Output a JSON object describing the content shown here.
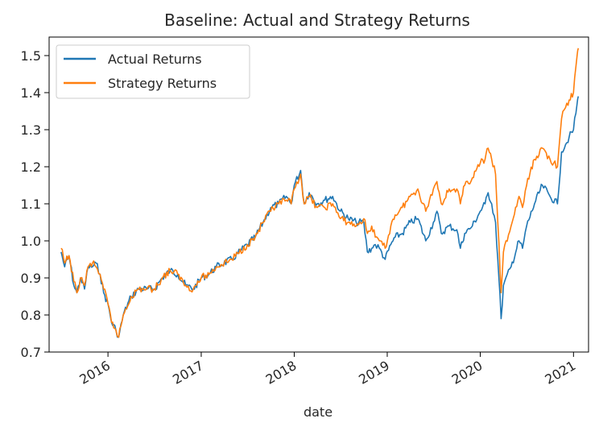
{
  "chart_data": {
    "type": "line",
    "title": "Baseline: Actual and Strategy Returns",
    "xlabel": "date",
    "ylabel": "",
    "xlim": [
      "2015-05-15",
      "2021-03-01"
    ],
    "ylim": [
      0.7,
      1.55
    ],
    "x_ticks": [
      "2016",
      "2017",
      "2018",
      "2019",
      "2020",
      "2021"
    ],
    "y_ticks": [
      "0.7",
      "0.8",
      "0.9",
      "1.0",
      "1.1",
      "1.2",
      "1.3",
      "1.4",
      "1.5"
    ],
    "grid": false,
    "legend_position": "top-left",
    "series": [
      {
        "name": "Actual Returns",
        "color": "#1f77b4",
        "points": [
          [
            "2015-07-01",
            0.97
          ],
          [
            "2015-07-15",
            0.93
          ],
          [
            "2015-08-01",
            0.96
          ],
          [
            "2015-08-20",
            0.88
          ],
          [
            "2015-09-01",
            0.86
          ],
          [
            "2015-09-15",
            0.9
          ],
          [
            "2015-10-01",
            0.87
          ],
          [
            "2015-10-15",
            0.93
          ],
          [
            "2015-11-01",
            0.93
          ],
          [
            "2015-11-15",
            0.94
          ],
          [
            "2015-12-01",
            0.91
          ],
          [
            "2015-12-15",
            0.86
          ],
          [
            "2016-01-01",
            0.83
          ],
          [
            "2016-01-15",
            0.78
          ],
          [
            "2016-02-01",
            0.76
          ],
          [
            "2016-02-12",
            0.74
          ],
          [
            "2016-03-01",
            0.8
          ],
          [
            "2016-04-01",
            0.85
          ],
          [
            "2016-05-01",
            0.87
          ],
          [
            "2016-06-01",
            0.87
          ],
          [
            "2016-07-01",
            0.87
          ],
          [
            "2016-08-01",
            0.9
          ],
          [
            "2016-09-01",
            0.92
          ],
          [
            "2016-10-01",
            0.91
          ],
          [
            "2016-11-01",
            0.88
          ],
          [
            "2016-12-01",
            0.87
          ],
          [
            "2017-01-01",
            0.9
          ],
          [
            "2017-02-01",
            0.91
          ],
          [
            "2017-03-01",
            0.93
          ],
          [
            "2017-05-01",
            0.95
          ],
          [
            "2017-07-01",
            0.99
          ],
          [
            "2017-08-01",
            1.01
          ],
          [
            "2017-09-01",
            1.05
          ],
          [
            "2017-10-01",
            1.09
          ],
          [
            "2017-11-01",
            1.1
          ],
          [
            "2017-12-01",
            1.12
          ],
          [
            "2017-12-20",
            1.1
          ],
          [
            "2018-01-01",
            1.15
          ],
          [
            "2018-01-26",
            1.19
          ],
          [
            "2018-02-09",
            1.1
          ],
          [
            "2018-03-01",
            1.13
          ],
          [
            "2018-04-01",
            1.1
          ],
          [
            "2018-05-01",
            1.11
          ],
          [
            "2018-06-01",
            1.12
          ],
          [
            "2018-07-01",
            1.08
          ],
          [
            "2018-08-01",
            1.06
          ],
          [
            "2018-09-01",
            1.05
          ],
          [
            "2018-10-01",
            1.05
          ],
          [
            "2018-10-15",
            0.97
          ],
          [
            "2018-11-01",
            0.98
          ],
          [
            "2018-11-15",
            0.99
          ],
          [
            "2018-12-01",
            0.98
          ],
          [
            "2018-12-24",
            0.95
          ],
          [
            "2019-01-15",
            0.99
          ],
          [
            "2019-02-01",
            1.01
          ],
          [
            "2019-03-01",
            1.02
          ],
          [
            "2019-04-01",
            1.05
          ],
          [
            "2019-05-01",
            1.06
          ],
          [
            "2019-06-01",
            1.0
          ],
          [
            "2019-07-01",
            1.05
          ],
          [
            "2019-07-15",
            1.08
          ],
          [
            "2019-08-01",
            1.02
          ],
          [
            "2019-09-01",
            1.04
          ],
          [
            "2019-10-01",
            1.03
          ],
          [
            "2019-10-15",
            0.98
          ],
          [
            "2019-11-01",
            1.02
          ],
          [
            "2019-12-01",
            1.04
          ],
          [
            "2020-01-01",
            1.08
          ],
          [
            "2020-01-20",
            1.1
          ],
          [
            "2020-02-01",
            1.13
          ],
          [
            "2020-02-15",
            1.1
          ],
          [
            "2020-03-01",
            1.05
          ],
          [
            "2020-03-10",
            0.95
          ],
          [
            "2020-03-23",
            0.79
          ],
          [
            "2020-04-01",
            0.88
          ],
          [
            "2020-05-01",
            0.93
          ],
          [
            "2020-06-01",
            1.0
          ],
          [
            "2020-06-15",
            0.98
          ],
          [
            "2020-07-01",
            1.04
          ],
          [
            "2020-08-01",
            1.1
          ],
          [
            "2020-09-01",
            1.15
          ],
          [
            "2020-10-01",
            1.12
          ],
          [
            "2020-10-30",
            1.1
          ],
          [
            "2020-11-15",
            1.24
          ],
          [
            "2020-12-01",
            1.26
          ],
          [
            "2020-12-15",
            1.28
          ],
          [
            "2021-01-01",
            1.3
          ],
          [
            "2021-01-15",
            1.37
          ],
          [
            "2021-01-20",
            1.39
          ]
        ]
      },
      {
        "name": "Strategy Returns",
        "color": "#ff7f0e",
        "points": [
          [
            "2015-07-01",
            0.98
          ],
          [
            "2015-07-15",
            0.94
          ],
          [
            "2015-08-01",
            0.96
          ],
          [
            "2015-08-20",
            0.89
          ],
          [
            "2015-09-01",
            0.86
          ],
          [
            "2015-09-15",
            0.9
          ],
          [
            "2015-10-01",
            0.88
          ],
          [
            "2015-10-15",
            0.93
          ],
          [
            "2015-11-01",
            0.94
          ],
          [
            "2015-11-15",
            0.93
          ],
          [
            "2015-12-01",
            0.91
          ],
          [
            "2015-12-15",
            0.87
          ],
          [
            "2016-01-01",
            0.83
          ],
          [
            "2016-01-15",
            0.78
          ],
          [
            "2016-02-01",
            0.76
          ],
          [
            "2016-02-12",
            0.74
          ],
          [
            "2016-03-01",
            0.8
          ],
          [
            "2016-04-01",
            0.85
          ],
          [
            "2016-05-01",
            0.87
          ],
          [
            "2016-06-01",
            0.87
          ],
          [
            "2016-07-01",
            0.87
          ],
          [
            "2016-08-01",
            0.9
          ],
          [
            "2016-09-01",
            0.92
          ],
          [
            "2016-10-01",
            0.91
          ],
          [
            "2016-11-01",
            0.88
          ],
          [
            "2016-12-01",
            0.87
          ],
          [
            "2017-01-01",
            0.9
          ],
          [
            "2017-02-01",
            0.91
          ],
          [
            "2017-03-01",
            0.93
          ],
          [
            "2017-05-01",
            0.95
          ],
          [
            "2017-07-01",
            0.99
          ],
          [
            "2017-08-01",
            1.01
          ],
          [
            "2017-09-01",
            1.05
          ],
          [
            "2017-10-01",
            1.08
          ],
          [
            "2017-11-01",
            1.1
          ],
          [
            "2017-12-01",
            1.11
          ],
          [
            "2017-12-20",
            1.1
          ],
          [
            "2018-01-01",
            1.14
          ],
          [
            "2018-01-26",
            1.18
          ],
          [
            "2018-02-09",
            1.1
          ],
          [
            "2018-03-01",
            1.12
          ],
          [
            "2018-04-01",
            1.09
          ],
          [
            "2018-05-01",
            1.09
          ],
          [
            "2018-06-01",
            1.1
          ],
          [
            "2018-07-01",
            1.06
          ],
          [
            "2018-08-01",
            1.05
          ],
          [
            "2018-09-01",
            1.04
          ],
          [
            "2018-10-01",
            1.06
          ],
          [
            "2018-10-15",
            1.02
          ],
          [
            "2018-11-01",
            1.04
          ],
          [
            "2018-11-15",
            1.01
          ],
          [
            "2018-12-01",
            1.0
          ],
          [
            "2018-12-24",
            0.98
          ],
          [
            "2019-01-15",
            1.04
          ],
          [
            "2019-02-01",
            1.07
          ],
          [
            "2019-03-01",
            1.09
          ],
          [
            "2019-04-01",
            1.12
          ],
          [
            "2019-05-01",
            1.14
          ],
          [
            "2019-06-01",
            1.08
          ],
          [
            "2019-07-01",
            1.14
          ],
          [
            "2019-07-15",
            1.16
          ],
          [
            "2019-08-01",
            1.1
          ],
          [
            "2019-09-01",
            1.14
          ],
          [
            "2019-10-01",
            1.14
          ],
          [
            "2019-10-15",
            1.1
          ],
          [
            "2019-11-01",
            1.15
          ],
          [
            "2019-12-01",
            1.17
          ],
          [
            "2020-01-01",
            1.21
          ],
          [
            "2020-01-20",
            1.22
          ],
          [
            "2020-02-01",
            1.25
          ],
          [
            "2020-02-15",
            1.22
          ],
          [
            "2020-03-01",
            1.18
          ],
          [
            "2020-03-10",
            1.05
          ],
          [
            "2020-03-23",
            0.86
          ],
          [
            "2020-04-01",
            0.97
          ],
          [
            "2020-05-01",
            1.04
          ],
          [
            "2020-06-01",
            1.12
          ],
          [
            "2020-06-15",
            1.09
          ],
          [
            "2020-07-01",
            1.15
          ],
          [
            "2020-08-01",
            1.22
          ],
          [
            "2020-09-01",
            1.25
          ],
          [
            "2020-10-01",
            1.22
          ],
          [
            "2020-10-30",
            1.2
          ],
          [
            "2020-11-15",
            1.33
          ],
          [
            "2020-12-01",
            1.36
          ],
          [
            "2020-12-15",
            1.38
          ],
          [
            "2021-01-01",
            1.4
          ],
          [
            "2021-01-15",
            1.5
          ],
          [
            "2021-01-20",
            1.52
          ]
        ]
      }
    ]
  }
}
